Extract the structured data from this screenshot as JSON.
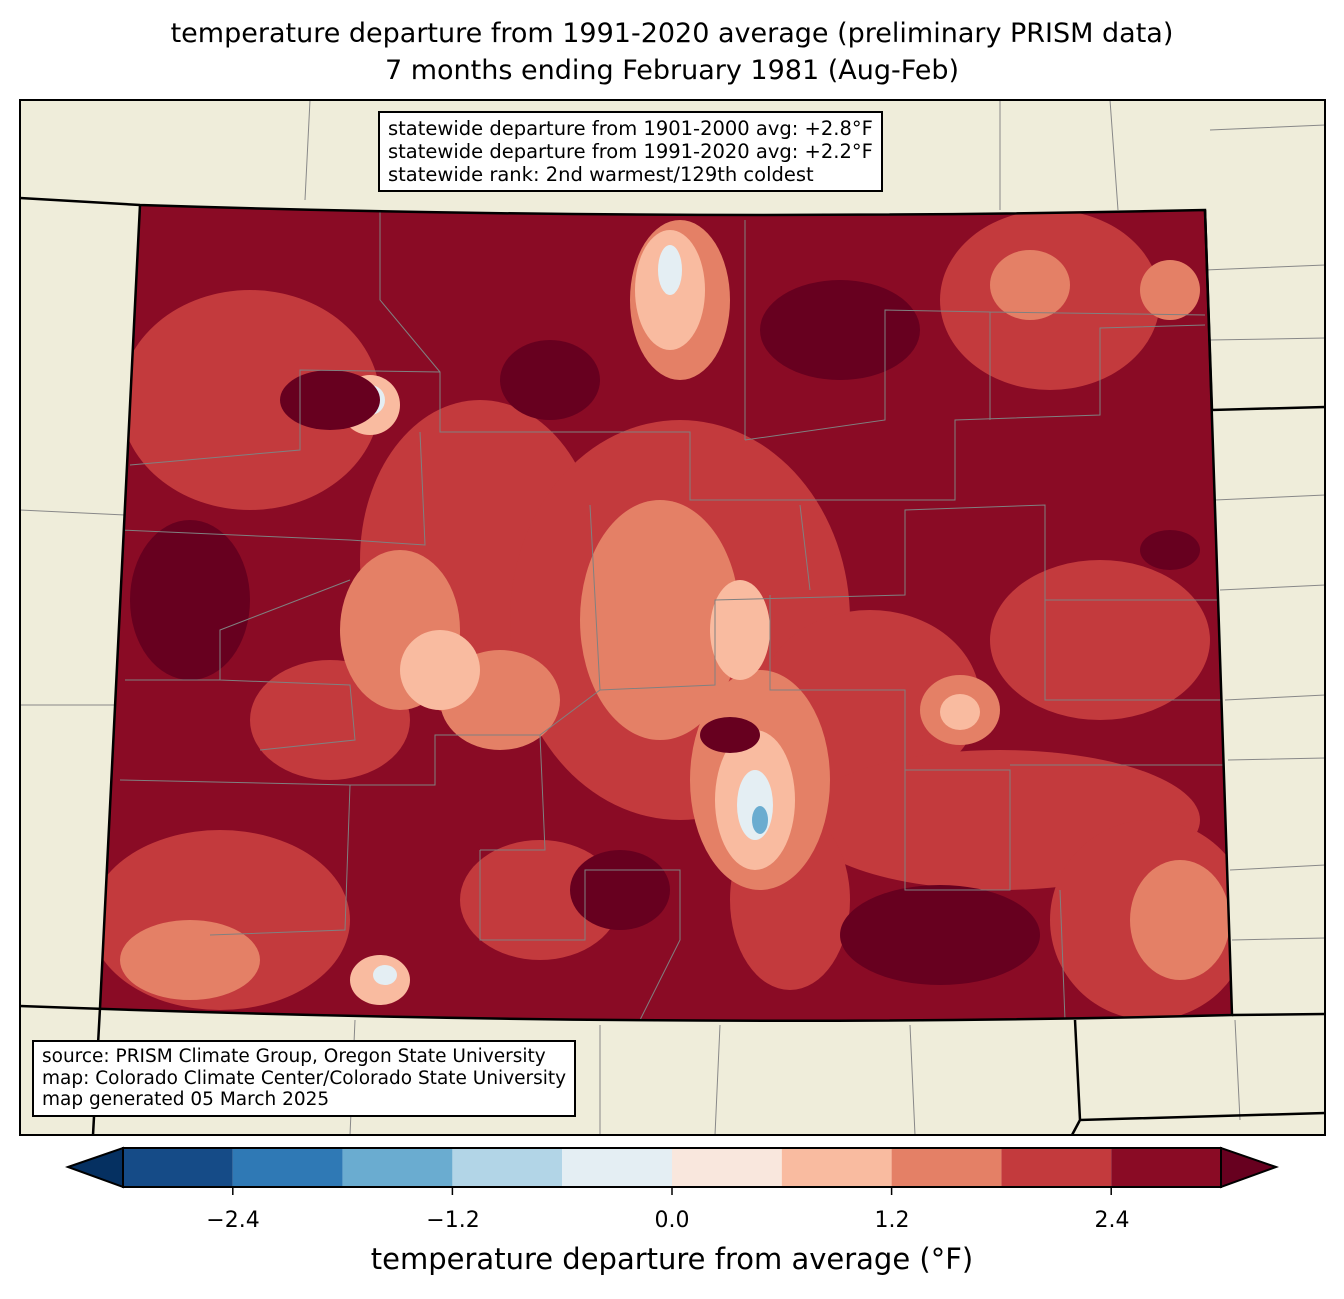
{
  "title": {
    "line1": "temperature departure from 1991-2020 average (preliminary PRISM data)",
    "line2": "7 months ending February 1981 (Aug-Feb)"
  },
  "info_box": {
    "line1": "statewide departure from 1901-2000 avg: +2.8°F",
    "line2": "statewide departure from 1991-2020 avg: +2.2°F",
    "line3": "statewide rank: 2nd warmest/129th coldest"
  },
  "source_box": {
    "line1": "source: PRISM Climate Group, Oregon State University",
    "line2": "map: Colorado Climate Center/Colorado State University",
    "line3": "map generated 05 March 2025"
  },
  "colorbar": {
    "label": "temperature departure from average (°F)",
    "ticks": [
      "−2.4",
      "−1.2",
      "0.0",
      "1.2",
      "2.4"
    ],
    "bounds": [
      -3.0,
      -2.4,
      -1.8,
      -1.2,
      -0.6,
      0.0,
      0.6,
      1.2,
      1.8,
      2.4,
      3.0
    ],
    "colors": [
      "#053061",
      "#154b87",
      "#2f79b5",
      "#6aacd0",
      "#b2d5e7",
      "#e4eef3",
      "#f9e7dd",
      "#f9bba0",
      "#e48066",
      "#c33a3d",
      "#8a0b25",
      "#67001f"
    ]
  },
  "map_colors": {
    "land": "#efedda",
    "state_border": "#000000",
    "county_border": "#808080"
  }
}
